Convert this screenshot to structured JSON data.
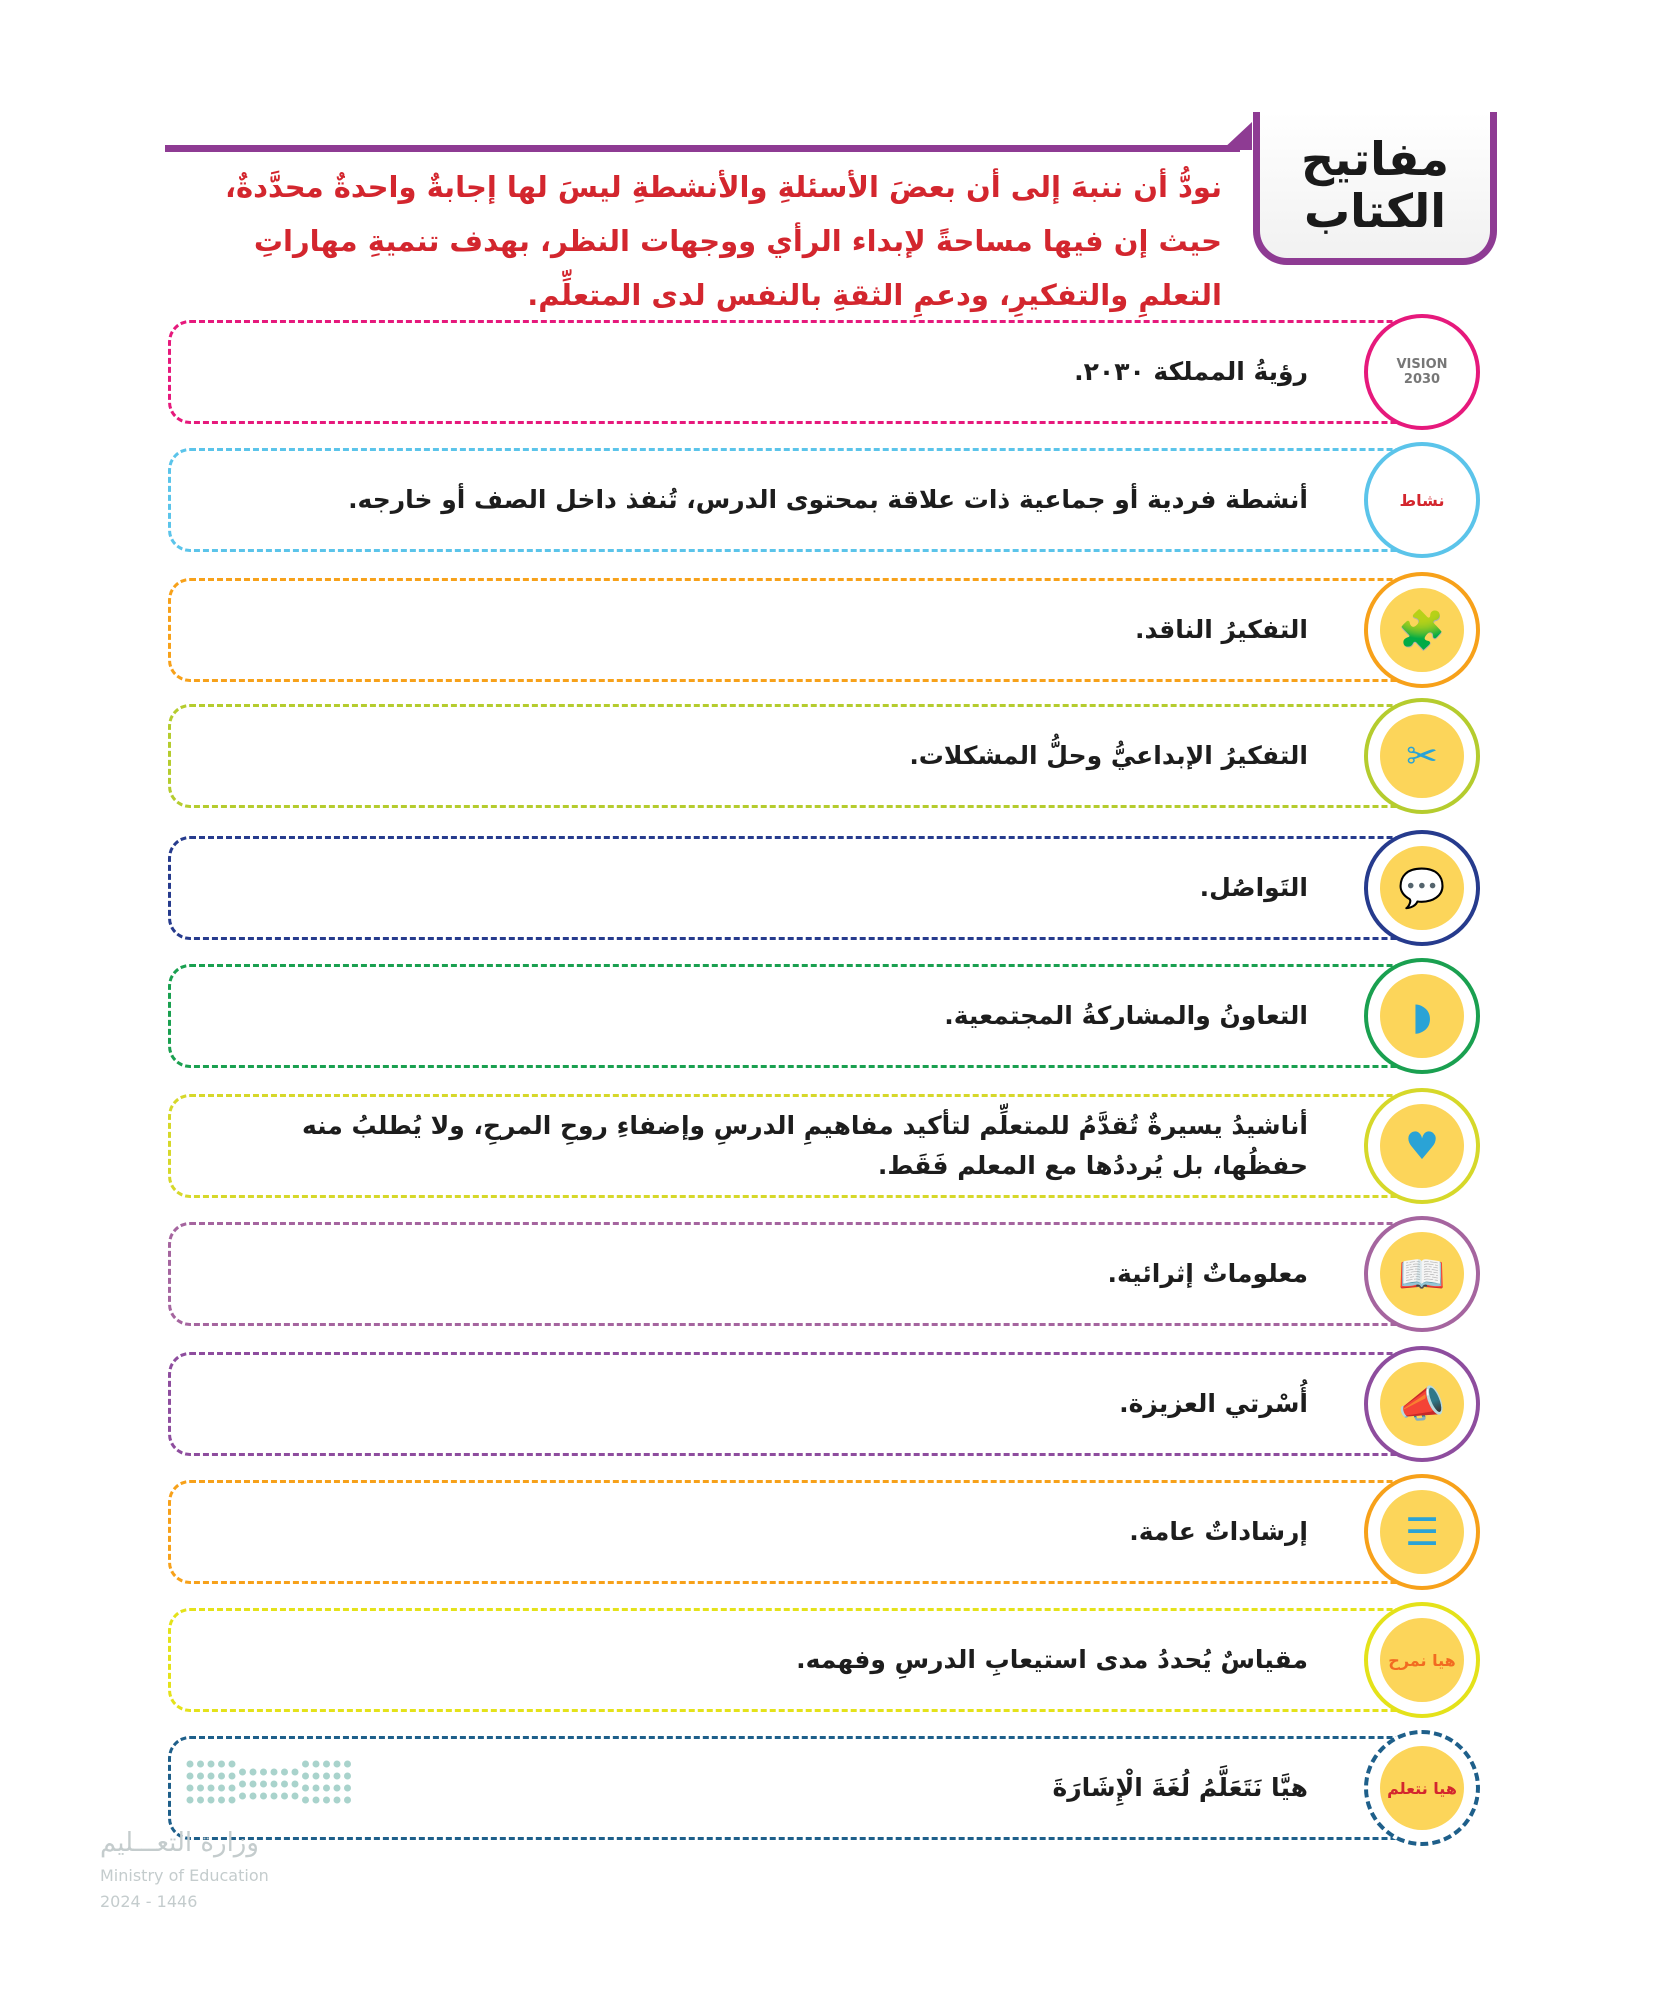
{
  "header": {
    "title_line1": "مفاتيح",
    "title_line2": "الكتاب",
    "intro": "نودُّ أن ننبهَ إلى أن بعضَ الأسئلةِ والأنشطةِ ليسَ لها إجابةٌ واحدةٌ محدَّدةٌ، حيث إن فيها مساحةً لإبداء الرأي ووجهات النظر، بهدف تنميةِ مهاراتِ التعلمِ والتفكيرِ، ودعمِ الثقةِ بالنفس لدى المتعلِّم.",
    "accent": "#8e3b93",
    "intro_color": "#d3262e"
  },
  "rows": [
    {
      "icon": "vision-2030-logo-icon",
      "icon_text": "VISION 2030",
      "color": "#e6197c",
      "text": "رؤيةُ المملكة ٢٠٣٠."
    },
    {
      "icon": "activity-rainbow-icon",
      "icon_text": "نشاط",
      "color": "#5bc4ea",
      "text": "أنشطة فردية أو جماعية ذات علاقة بمحتوى الدرس، تُنفذ داخل الصف أو خارجه."
    },
    {
      "icon": "puzzle-icon",
      "color": "#f7a11a",
      "text": "التفكيرُ الناقد."
    },
    {
      "icon": "creative-thinking-icon",
      "color": "#b5cc2e",
      "text": "التفكيرُ الإبداعيُّ وحلُّ المشكلات."
    },
    {
      "icon": "speech-bubble-icon",
      "color": "#263b8d",
      "text": "التَواصُل."
    },
    {
      "icon": "saudi-map-icon",
      "color": "#1aa050",
      "text": "التعاونُ والمشاركةُ المجتمعية."
    },
    {
      "icon": "singing-people-icon",
      "color": "#d6d82a",
      "text": "أناشيدُ يسيرةٌ تُقدَّمُ للمتعلِّم لتأكيد مفاهيمِ الدرسِ وإضفاءِ روحِ المرحِ، ولا يُطلبُ منه حفظُها، بل يُرددُها مع المعلم فَقَط."
    },
    {
      "icon": "open-book-icon",
      "color": "#a5659f",
      "text": "معلوماتٌ إثرائية."
    },
    {
      "icon": "megaphone-ear-icon",
      "color": "#8e4d9e",
      "text": "أُسْرتي العزيزة."
    },
    {
      "icon": "document-lines-icon",
      "color": "#f7a11a",
      "text": "إرشاداتٌ عامة."
    },
    {
      "icon": "lets-have-fun-icon",
      "icon_text": "هيا نمرح",
      "color": "#e4e21a",
      "text": "مقياسٌ يُحددُ مدى استيعابِ الدرسِ وفهمه."
    },
    {
      "icon": "sign-language-kids-icon",
      "icon_text": "هيا نتعلم",
      "color": "#1e5f8a",
      "text": "هيَّا نَتَعَلَّمُ لُغَةَ الْإِشَارَةَ"
    }
  ],
  "footer": {
    "ministry_ar": "وزارة التعـــليم",
    "ministry_en": "Ministry of Education",
    "year": "2024 - 1446"
  }
}
